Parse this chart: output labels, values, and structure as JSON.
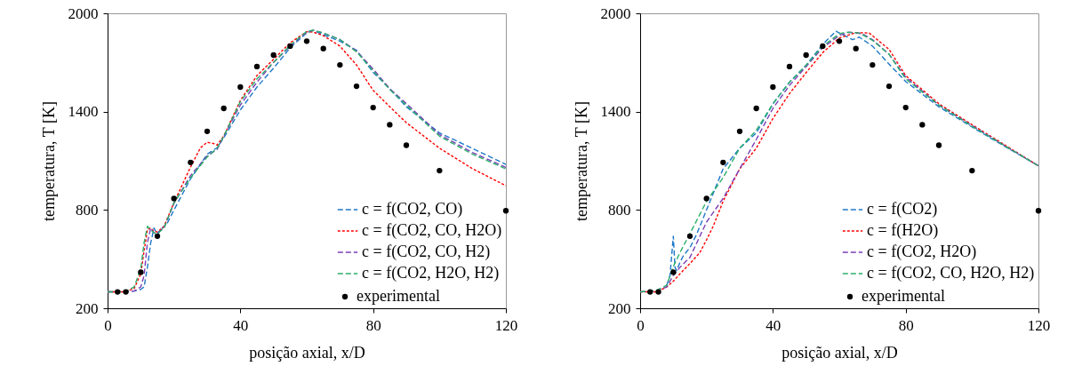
{
  "chart_data": [
    {
      "type": "line",
      "xlabel": "posição axial, x/D",
      "ylabel": "temperatura, T [K]",
      "xlim": [
        0,
        120
      ],
      "xticks": [
        0,
        40,
        80,
        120
      ],
      "ylim": [
        200,
        2000
      ],
      "yticks": [
        200,
        800,
        1400,
        2000
      ],
      "grid": false,
      "legend": "bottom right",
      "series": [
        {
          "name": "c = f(CO2, CO)",
          "color": "#1f78c8",
          "line_style": "dashed",
          "x": [
            0,
            5,
            8,
            10,
            11,
            12,
            13,
            14,
            15,
            16,
            18,
            20,
            25,
            30,
            33,
            35,
            40,
            45,
            50,
            55,
            60,
            62,
            65,
            70,
            75,
            80,
            85,
            90,
            100,
            110,
            120
          ],
          "values": [
            300,
            300,
            305,
            315,
            330,
            450,
            600,
            690,
            650,
            680,
            720,
            800,
            990,
            1140,
            1180,
            1240,
            1410,
            1550,
            1665,
            1790,
            1880,
            1895,
            1870,
            1830,
            1775,
            1640,
            1540,
            1430,
            1270,
            1175,
            1078
          ]
        },
        {
          "name": "c = f(CO2, CO, H2O)",
          "color": "#ff0000",
          "line_style": "dotted",
          "x": [
            0,
            5,
            8,
            10,
            11,
            12,
            13,
            14,
            15,
            17,
            20,
            25,
            28,
            30,
            32,
            33,
            35,
            40,
            45,
            50,
            55,
            60,
            62,
            65,
            70,
            75,
            80,
            85,
            90,
            100,
            110,
            120
          ],
          "values": [
            300,
            300,
            320,
            410,
            550,
            680,
            690,
            670,
            665,
            700,
            845,
            1062,
            1180,
            1213,
            1205,
            1196,
            1251,
            1468,
            1620,
            1719,
            1820,
            1888,
            1885,
            1864,
            1800,
            1685,
            1530,
            1430,
            1333,
            1177,
            1051,
            948
          ]
        },
        {
          "name": "c = f(CO2, CO, H2)",
          "color": "#7b3fb6",
          "line_style": "dashed",
          "x": [
            0,
            5,
            8,
            10,
            11,
            12,
            13,
            14,
            15,
            17,
            20,
            25,
            30,
            33,
            35,
            40,
            45,
            50,
            55,
            60,
            62,
            65,
            70,
            75,
            80,
            85,
            90,
            100,
            110,
            120
          ],
          "values": [
            300,
            300,
            305,
            330,
            400,
            600,
            690,
            660,
            660,
            690,
            840,
            1010,
            1130,
            1170,
            1250,
            1440,
            1580,
            1700,
            1800,
            1885,
            1897,
            1880,
            1840,
            1770,
            1660,
            1540,
            1450,
            1260,
            1150,
            1060
          ]
        },
        {
          "name": "c = f(CO2, H2O, H2)",
          "color": "#2aae6a",
          "line_style": "dashed",
          "x": [
            0,
            5,
            8,
            10,
            11,
            12,
            13,
            14,
            15,
            17,
            20,
            25,
            30,
            33,
            35,
            40,
            45,
            50,
            55,
            60,
            62,
            65,
            70,
            75,
            80,
            85,
            90,
            100,
            110,
            120
          ],
          "values": [
            300,
            300,
            330,
            440,
            600,
            700,
            680,
            660,
            655,
            690,
            845,
            997,
            1123,
            1177,
            1250,
            1460,
            1600,
            1700,
            1805,
            1890,
            1897,
            1880,
            1840,
            1765,
            1650,
            1535,
            1440,
            1250,
            1140,
            1051
          ]
        },
        {
          "name": "experimental",
          "type": "scatter",
          "marker": "circle",
          "color": "#000000",
          "x": [
            3,
            5.5,
            10,
            15,
            20,
            25,
            30,
            35,
            40,
            45,
            50,
            55,
            60,
            65,
            70,
            75,
            80,
            85,
            90,
            100,
            120
          ],
          "values": [
            300,
            300,
            420,
            640,
            870,
            1090,
            1280,
            1420,
            1550,
            1675,
            1745,
            1800,
            1830,
            1785,
            1685,
            1555,
            1425,
            1320,
            1195,
            1040,
            795
          ]
        }
      ]
    },
    {
      "type": "line",
      "xlabel": "posição axial, x/D",
      "ylabel": "temperatura, T [K]",
      "xlim": [
        0,
        120
      ],
      "xticks": [
        0,
        40,
        80,
        120
      ],
      "ylim": [
        200,
        2000
      ],
      "yticks": [
        200,
        800,
        1400,
        2000
      ],
      "grid": false,
      "legend": "bottom right",
      "series": [
        {
          "name": "c = f(CO2)",
          "color": "#1f78c8",
          "line_style": "dashed",
          "x": [
            8,
            9,
            10,
            10.5,
            11,
            12,
            13,
            15,
            17,
            20,
            25,
            30,
            35,
            40,
            45,
            50,
            55,
            59,
            62,
            64,
            66,
            70,
            75,
            80,
            90,
            100,
            110,
            120
          ],
          "values": [
            340,
            400,
            640,
            450,
            430,
            480,
            520,
            570,
            650,
            800,
            1051,
            1177,
            1270,
            1448,
            1580,
            1683,
            1810,
            1891,
            1860,
            1839,
            1855,
            1800,
            1690,
            1584,
            1430,
            1306,
            1186,
            1069
          ]
        },
        {
          "name": "c = f(H2O)",
          "color": "#ff0000",
          "line_style": "dotted",
          "x": [
            0,
            5,
            8,
            10,
            12,
            15,
            18,
            20,
            22,
            25,
            30,
            35,
            40,
            45,
            50,
            55,
            60,
            65,
            69,
            75,
            80,
            90,
            100,
            110,
            120
          ],
          "values": [
            300,
            300,
            330,
            365,
            410,
            473,
            540,
            617,
            700,
            853,
            1051,
            1177,
            1358,
            1510,
            1638,
            1760,
            1850,
            1882,
            1880,
            1780,
            1620,
            1448,
            1320,
            1195,
            1069
          ]
        },
        {
          "name": "c = f(CO2, H2O)",
          "color": "#7b3fb6",
          "line_style": "dashed",
          "x": [
            0,
            5,
            8,
            10,
            12,
            15,
            20,
            25,
            30,
            35,
            40,
            45,
            50,
            55,
            60,
            63,
            67,
            70,
            75,
            80,
            90,
            100,
            110,
            120
          ],
          "values": [
            300,
            305,
            330,
            400,
            450,
            510,
            726,
            871,
            1051,
            1230,
            1420,
            1560,
            1675,
            1790,
            1865,
            1885,
            1875,
            1840,
            1750,
            1610,
            1440,
            1315,
            1190,
            1069
          ]
        },
        {
          "name": "c = f(CO2, CO, H2O, H2)",
          "color": "#2aae6a",
          "line_style": "dashed",
          "x": [
            0,
            5,
            8,
            10,
            12,
            15,
            20,
            25,
            30,
            35,
            40,
            45,
            50,
            55,
            60,
            62,
            66,
            70,
            75,
            80,
            90,
            100,
            110,
            120
          ],
          "values": [
            300,
            310,
            340,
            455,
            540,
            655,
            853,
            997,
            1177,
            1286,
            1448,
            1580,
            1683,
            1800,
            1875,
            1885,
            1880,
            1835,
            1750,
            1600,
            1440,
            1310,
            1190,
            1069
          ]
        },
        {
          "name": "experimental",
          "type": "scatter",
          "marker": "circle",
          "color": "#000000",
          "x": [
            3,
            5.5,
            10,
            15,
            20,
            25,
            30,
            35,
            40,
            45,
            50,
            55,
            60,
            65,
            70,
            75,
            80,
            85,
            90,
            100,
            120
          ],
          "values": [
            300,
            300,
            420,
            640,
            870,
            1090,
            1280,
            1420,
            1550,
            1675,
            1745,
            1800,
            1830,
            1785,
            1685,
            1555,
            1425,
            1320,
            1195,
            1040,
            795
          ]
        }
      ]
    }
  ]
}
